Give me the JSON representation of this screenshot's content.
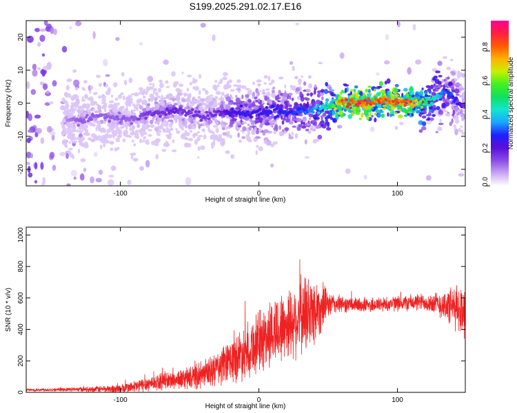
{
  "title": "S199.2025.291.02.17.E16",
  "colors": {
    "snr_line": "#ee2222",
    "axis": "#000000",
    "background": "#ffffff"
  },
  "chart_data": [
    {
      "type": "heatmap",
      "name": "spectrogram",
      "title": "S199.2025.291.02.17.E16",
      "xlabel": "Height of straight line (km)",
      "ylabel": "Frequency (Hz)",
      "xlim": [
        -168,
        149
      ],
      "ylim": [
        -25,
        25
      ],
      "xticks": [
        -100,
        0,
        100
      ],
      "yticks": [
        -20,
        -10,
        0,
        10,
        20
      ],
      "colorbar": {
        "label": "Normalized spectral amplitude",
        "range": [
          0.0,
          0.98
        ],
        "ticks": [
          0.0,
          0.2,
          0.4,
          0.6,
          0.8
        ],
        "colormap": [
          "#ffffff",
          "#c9a6f3",
          "#8a4be8",
          "#5a10d8",
          "#2020ff",
          "#1aa6ff",
          "#10e6d0",
          "#10e060",
          "#40f020",
          "#c8f000",
          "#ffb000",
          "#ff5a00",
          "#ff2040",
          "#ff0090"
        ]
      },
      "ridge": {
        "x": [
          -140,
          -130,
          -120,
          -110,
          -100,
          -90,
          -80,
          -70,
          -60,
          -50,
          -40,
          -30,
          -20,
          -10,
          0,
          10,
          20,
          30,
          40,
          50,
          60,
          70,
          80,
          90,
          100,
          110,
          120,
          125,
          130,
          135,
          140,
          145,
          149
        ],
        "freq": [
          -5,
          -5,
          -4,
          -4,
          -5,
          -5,
          -3,
          -3,
          -2,
          -3,
          -4,
          -3,
          -3,
          -3,
          -3,
          -2,
          -3,
          -2,
          -2,
          -1,
          0,
          0,
          0,
          1,
          0,
          0,
          0,
          1,
          2,
          4,
          2,
          0,
          -1
        ],
        "amplitude": [
          0.1,
          0.15,
          0.15,
          0.15,
          0.15,
          0.15,
          0.2,
          0.2,
          0.22,
          0.2,
          0.2,
          0.2,
          0.28,
          0.3,
          0.3,
          0.32,
          0.32,
          0.35,
          0.4,
          0.55,
          0.9,
          0.95,
          0.95,
          0.9,
          0.92,
          0.9,
          0.6,
          0.55,
          0.45,
          0.35,
          0.35,
          0.25,
          0.2
        ]
      }
    },
    {
      "type": "line",
      "name": "snr",
      "xlabel": "Height of straight line (km)",
      "ylabel": "SNR (10 * v/v)",
      "xlim": [
        -168,
        149
      ],
      "ylim": [
        0,
        1050
      ],
      "xticks": [
        -100,
        0,
        100
      ],
      "yticks": [
        0,
        200,
        400,
        600,
        800,
        1000
      ],
      "envelope": {
        "x": [
          -168,
          -140,
          -120,
          -100,
          -90,
          -80,
          -70,
          -60,
          -50,
          -40,
          -30,
          -20,
          -10,
          0,
          10,
          20,
          30,
          35,
          40,
          45,
          50,
          60,
          70,
          80,
          90,
          100,
          110,
          120,
          130,
          140,
          149
        ],
        "mean": [
          15,
          18,
          20,
          22,
          35,
          55,
          70,
          80,
          90,
          110,
          150,
          200,
          260,
          320,
          380,
          430,
          480,
          500,
          520,
          540,
          560,
          560,
          555,
          555,
          560,
          565,
          570,
          575,
          560,
          540,
          520
        ],
        "spread": [
          10,
          12,
          20,
          35,
          45,
          55,
          60,
          70,
          80,
          100,
          130,
          160,
          200,
          230,
          250,
          260,
          280,
          300,
          260,
          180,
          90,
          60,
          55,
          55,
          55,
          55,
          60,
          65,
          90,
          150,
          200
        ]
      }
    }
  ]
}
